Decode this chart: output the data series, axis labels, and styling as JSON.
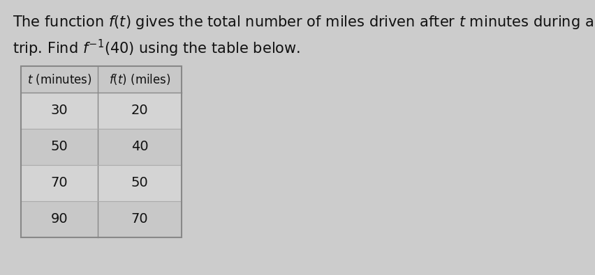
{
  "line1": "The function $f(t)$ gives the total number of miles driven after $t$ minutes during a road",
  "line2": "trip. Find $f^{-1}(40)$ using the table below.",
  "col1_header": "$t$ (minutes)",
  "col2_header": "$f(t)$ (miles)",
  "rows": [
    [
      30,
      20
    ],
    [
      50,
      40
    ],
    [
      70,
      50
    ],
    [
      90,
      70
    ]
  ],
  "bg_color": "#cccccc",
  "table_bg": "#c8c8c8",
  "row_line_color": "#aaaaaa",
  "border_color": "#888888",
  "text_color": "#111111",
  "title_fontsize": 15,
  "header_fontsize": 12,
  "cell_fontsize": 14
}
